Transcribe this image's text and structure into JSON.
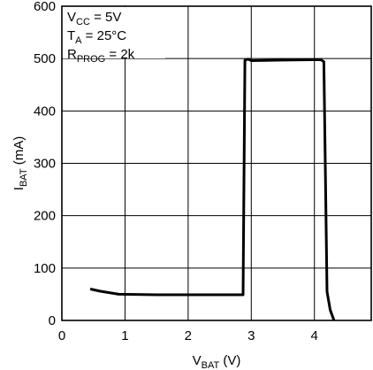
{
  "chart_data": {
    "type": "line",
    "xlabel": {
      "main": "V",
      "sub": "BAT",
      "rest": " (V)"
    },
    "ylabel": {
      "main": "I",
      "sub": "BAT",
      "rest": " (mA)"
    },
    "xlim": [
      0,
      4.9
    ],
    "ylim": [
      0,
      600
    ],
    "x_ticks": [
      "0",
      "1",
      "2",
      "3",
      "4"
    ],
    "y_ticks": [
      "0",
      "100",
      "200",
      "300",
      "400",
      "500",
      "600"
    ],
    "grid": true,
    "annotations": [
      {
        "main": "V",
        "sub": "CC",
        "rest": " = 5V"
      },
      {
        "main": "T",
        "sub": "A",
        "rest": " = 25°C"
      },
      {
        "main": "R",
        "sub": "PROG",
        "rest": " = 2k"
      }
    ],
    "series": [
      {
        "points": [
          {
            "x": 0.45,
            "y": 60
          },
          {
            "x": 0.6,
            "y": 56
          },
          {
            "x": 0.9,
            "y": 50
          },
          {
            "x": 1.5,
            "y": 49
          },
          {
            "x": 2.87,
            "y": 49
          },
          {
            "x": 2.9,
            "y": 497
          },
          {
            "x": 2.95,
            "y": 499
          },
          {
            "x": 3.0,
            "y": 496
          },
          {
            "x": 3.5,
            "y": 497
          },
          {
            "x": 4.1,
            "y": 498
          },
          {
            "x": 4.15,
            "y": 494
          },
          {
            "x": 4.2,
            "y": 55
          },
          {
            "x": 4.25,
            "y": 20
          },
          {
            "x": 4.31,
            "y": 0
          }
        ]
      }
    ]
  }
}
